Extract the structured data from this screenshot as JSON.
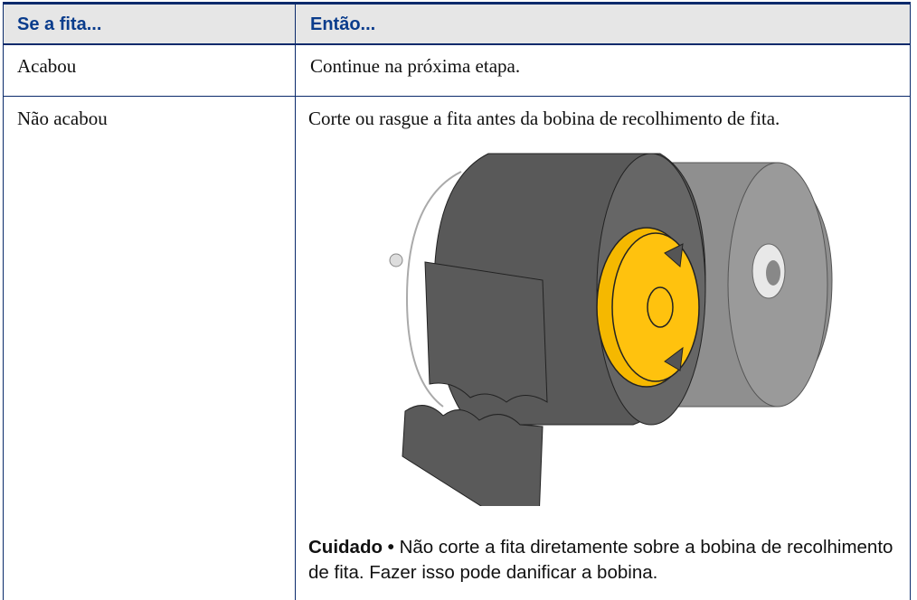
{
  "table": {
    "header": [
      "Se a fita...",
      "Então..."
    ],
    "rows": [
      [
        "Acabou",
        "Continue na próxima etapa."
      ],
      [
        "Não acabou",
        "Corte ou rasgue a fita antes da bobina de recolhimento de fita."
      ]
    ]
  },
  "caution": {
    "label": "Cuidado •",
    "text": "Não corte a fita diretamente sobre a bobina de recolhimento de fita. Fazer isso pode danificar a bobina."
  }
}
